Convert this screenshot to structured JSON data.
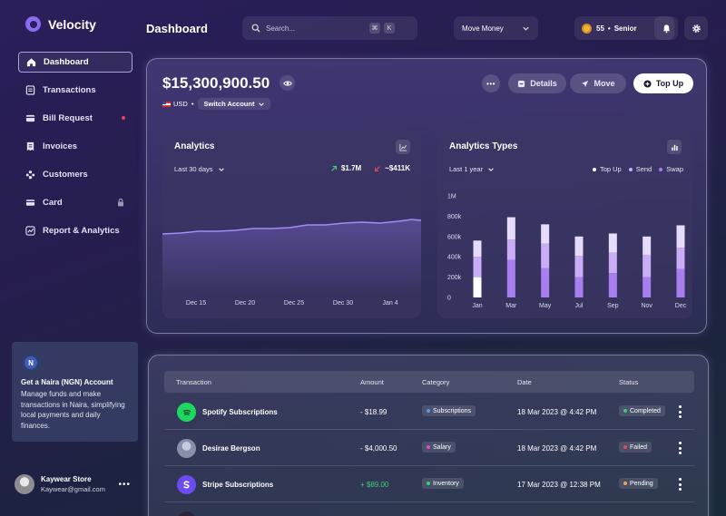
{
  "brand": {
    "name": "Velocity"
  },
  "sidebar": {
    "items": [
      {
        "label": "Dashboard",
        "icon": "home-icon"
      },
      {
        "label": "Transactions",
        "icon": "transactions-icon"
      },
      {
        "label": "Bill Request",
        "icon": "bill-icon"
      },
      {
        "label": "Invoices",
        "icon": "invoice-icon"
      },
      {
        "label": "Customers",
        "icon": "customers-icon"
      },
      {
        "label": "Card",
        "icon": "card-icon"
      },
      {
        "label": "Report & Analytics",
        "icon": "chart-icon"
      }
    ],
    "promo": {
      "badge": "N",
      "title": "Get a Naira (NGN) Account",
      "text": "Manage funds and make transactions in Naira, simplifying local payments and daily finances."
    },
    "user": {
      "name": "Kaywear Store",
      "email": "Kaywear@gmail.com",
      "more": "•••"
    }
  },
  "header": {
    "title": "Dashboard",
    "search_placeholder": "Search...",
    "shortcut": [
      "⌘",
      "K"
    ],
    "move_money": "Move Money",
    "rank_points": "55",
    "rank_sep": "•",
    "rank_level": "Senior"
  },
  "balance": {
    "amount": "$15,300,900.50",
    "currency": "USD",
    "dot": "•",
    "switch_label": "Switch Account",
    "more": "•••",
    "details_label": "Details",
    "move_label": "Move",
    "topup_label": "Top Up"
  },
  "analytics": {
    "title": "Analytics",
    "range": "Last 30 days",
    "income": "$1.7M",
    "expense": "~$411K",
    "x_labels": [
      "Dec 15",
      "Dec 20",
      "Dec 25",
      "Dec 30",
      "Jan 4"
    ]
  },
  "chart_data": {
    "type": "bar",
    "title": "Analytics Types",
    "range": "Last 1 year",
    "categories": [
      "Jan",
      "Mar",
      "May",
      "Jul",
      "Sep",
      "Nov",
      "Dec"
    ],
    "y_ticks": [
      "1M",
      "800k",
      "600k",
      "400k",
      "200k",
      "0"
    ],
    "ylim": [
      0,
      1000000
    ],
    "legend_position": "top-right",
    "series": [
      {
        "name": "Top Up",
        "color": "#a97ff0",
        "values": [
          200000,
          370000,
          290000,
          200000,
          240000,
          200000,
          280000
        ]
      },
      {
        "name": "Send",
        "color": "#c9adf6",
        "values": [
          200000,
          200000,
          240000,
          210000,
          200000,
          220000,
          210000
        ]
      },
      {
        "name": "Swap",
        "color": "#e7dcfb",
        "values": [
          160000,
          220000,
          190000,
          190000,
          190000,
          180000,
          220000
        ]
      }
    ],
    "first_bar_base_color": "#ffffff"
  },
  "transactions": {
    "headers": [
      "Transaction",
      "Amount",
      "Category",
      "Date",
      "Status"
    ],
    "rows": [
      {
        "name": "Spotify Subscriptions",
        "amount": "- $18.99",
        "category": "Subscriptions",
        "date": "18 Mar 2023 @ 4:42 PM",
        "status": "Completed",
        "logo_color": "#1ed760",
        "cat_color": "#4f9cf0",
        "status_color": "#35d07f",
        "amount_color": "#ffffff"
      },
      {
        "name": "Desirae Bergson",
        "amount": "- $4,000.50",
        "category": "Salary",
        "date": "18 Mar 2023 @ 4:42 PM",
        "status": "Failed",
        "logo_color": "#9aa0b8",
        "cat_color": "#e24ac8",
        "status_color": "#e54b55",
        "amount_color": "#ffffff"
      },
      {
        "name": "Stripe Subscriptions",
        "amount": "+ $89.00",
        "category": "Inventory",
        "date": "17 Mar 2023 @ 12:38 PM",
        "status": "Pending",
        "logo_color": "#6c4cf0",
        "cat_color": "#35d07f",
        "status_color": "#f0a53c",
        "amount_color": "#3fd07a"
      }
    ]
  }
}
